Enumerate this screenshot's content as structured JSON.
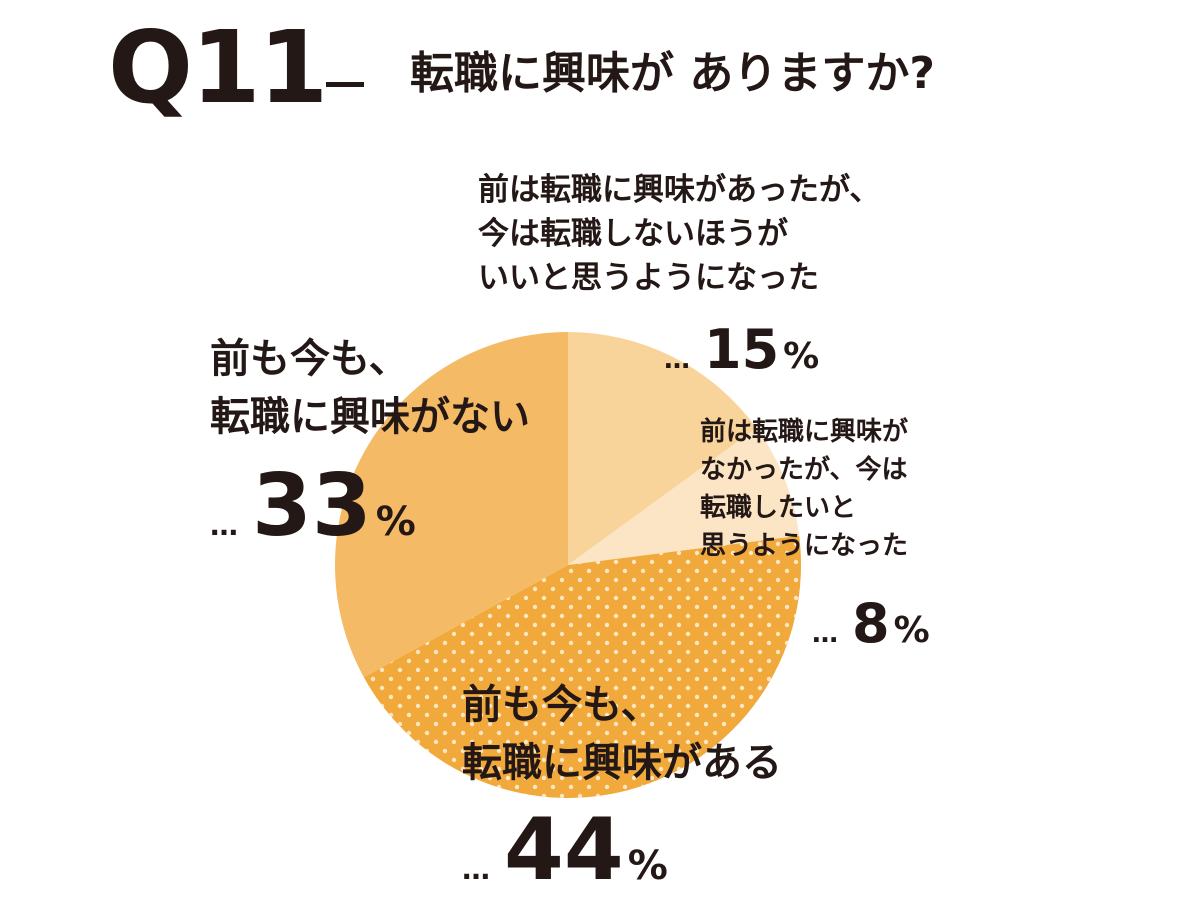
{
  "header": {
    "question_number": "Q11",
    "question_text": "転職に興味が ありますか?"
  },
  "colors": {
    "text": "#231815",
    "slice_light": "#f9d49a",
    "slice_pale": "#fce5c4",
    "slice_dotted_base": "#f1a93c",
    "slice_dotted_dots": "#fde7c3",
    "slice_medium": "#f5ba65"
  },
  "chart_data": {
    "type": "pie",
    "title": "",
    "slices": [
      {
        "label_lines": [
          "前は転職に興味があったが、",
          "今は転職しないほうが",
          "いいと思うようになった"
        ],
        "value": 15,
        "dots": "…",
        "unit": "%",
        "color": "#f9d49a",
        "pattern": "none"
      },
      {
        "label_lines": [
          "前は転職に興味が",
          "なかったが、今は",
          "転職したいと",
          "思うようになった"
        ],
        "value": 8,
        "dots": "…",
        "unit": "%",
        "color": "#fce5c4",
        "pattern": "none"
      },
      {
        "label_lines": [
          "前も今も、",
          "転職に興味がある"
        ],
        "value": 44,
        "dots": "…",
        "unit": "%",
        "color": "#f1a93c",
        "pattern": "dots"
      },
      {
        "label_lines": [
          "前も今も、",
          "転職に興味がない"
        ],
        "value": 33,
        "dots": "…",
        "unit": "%",
        "color": "#f5ba65",
        "pattern": "none"
      }
    ]
  }
}
